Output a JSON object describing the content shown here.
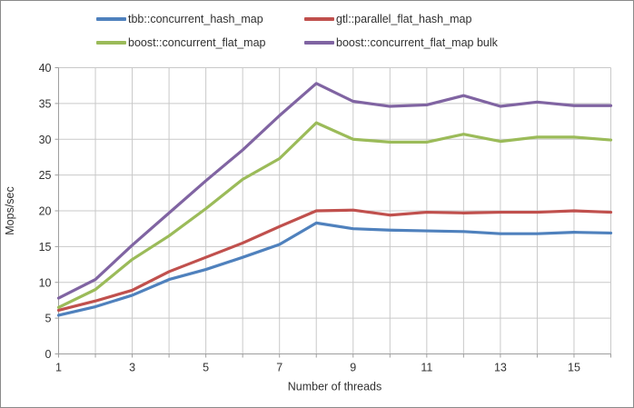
{
  "window": {
    "background": "#ffffff",
    "border_color": "#8a8a8a"
  },
  "colors": {
    "gridline": "#c9c9c9",
    "axis_line": "#9e9e9e",
    "tick_text": "#333333",
    "title_text": "#303030"
  },
  "chart_data": {
    "type": "line",
    "title": "",
    "xlabel": "Number of threads",
    "ylabel": "Mops/sec",
    "x": [
      1,
      2,
      3,
      4,
      5,
      6,
      7,
      8,
      9,
      10,
      11,
      12,
      13,
      14,
      15,
      16
    ],
    "xlim": [
      1,
      16
    ],
    "x_labeled_ticks": [
      1,
      3,
      5,
      7,
      9,
      11,
      13,
      15
    ],
    "ylim": [
      0,
      40
    ],
    "y_ticks": [
      0,
      5,
      10,
      15,
      20,
      25,
      30,
      35,
      40
    ],
    "grid": true,
    "legend_position": "top",
    "series": [
      {
        "name": "tbb::concurrent_hash_map",
        "color": "#4F81BD",
        "values": [
          5.4,
          6.6,
          8.2,
          10.4,
          11.8,
          13.5,
          15.3,
          18.3,
          17.5,
          17.3,
          17.2,
          17.1,
          16.8,
          16.8,
          17.0,
          16.9
        ]
      },
      {
        "name": "gtl::parallel_flat_hash_map",
        "color": "#C0504D",
        "values": [
          6.1,
          7.4,
          8.9,
          11.5,
          13.5,
          15.5,
          17.8,
          20.0,
          20.1,
          19.4,
          19.8,
          19.7,
          19.8,
          19.8,
          20.0,
          19.8
        ]
      },
      {
        "name": "boost::concurrent_flat_map",
        "color": "#9BBB59",
        "values": [
          6.5,
          9.0,
          13.2,
          16.5,
          20.3,
          24.4,
          27.3,
          32.3,
          30.0,
          29.6,
          29.6,
          30.7,
          29.7,
          30.3,
          30.3,
          29.9
        ]
      },
      {
        "name": "boost::concurrent_flat_map bulk",
        "color": "#8064A2",
        "values": [
          7.8,
          10.4,
          15.2,
          19.7,
          24.2,
          28.5,
          33.3,
          37.8,
          35.3,
          34.6,
          34.8,
          36.1,
          34.6,
          35.2,
          34.7,
          34.7
        ]
      }
    ]
  }
}
